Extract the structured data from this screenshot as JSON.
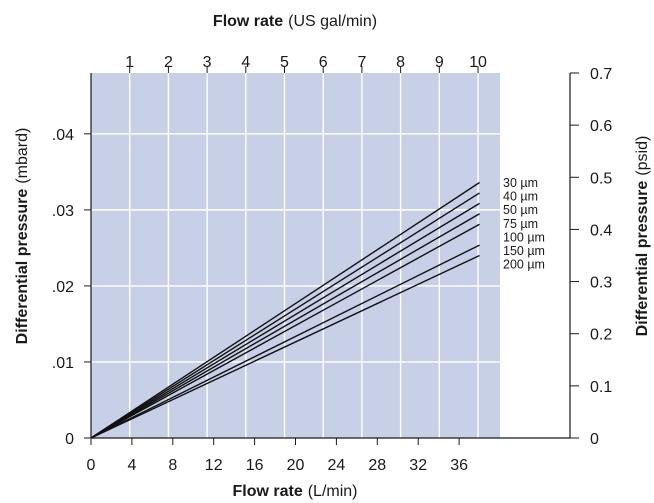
{
  "chart_data": {
    "type": "line",
    "colors": {
      "plot_background": "#c8d0e7",
      "grid": "#ffffff",
      "series": "#111111"
    },
    "grid": true,
    "x_bottom": {
      "label_bold": "Flow rate",
      "label_unit": "(L/min)",
      "range": [
        0,
        40
      ],
      "ticks": [
        0,
        4,
        8,
        12,
        16,
        20,
        24,
        28,
        32,
        36
      ]
    },
    "x_top": {
      "label_bold": "Flow rate",
      "label_unit": "(US gal/min)",
      "ticks": [
        1,
        2,
        3,
        4,
        5,
        6,
        7,
        8,
        9,
        10
      ],
      "liters_per_gallon": 3.785
    },
    "y_left": {
      "label_bold": "Differential pressure",
      "label_unit": "(mbard)",
      "range": [
        0,
        0.048
      ],
      "ticks": [
        {
          "value": 0,
          "label": "0"
        },
        {
          "value": 0.01,
          "label": ".01"
        },
        {
          "value": 0.02,
          "label": ".02"
        },
        {
          "value": 0.03,
          "label": ".03"
        },
        {
          "value": 0.04,
          "label": ".04"
        }
      ]
    },
    "y_right": {
      "label_bold": "Differential pressure",
      "label_unit": "(psid)",
      "range": [
        0,
        0.7
      ],
      "ticks": [
        {
          "value": 0,
          "label": "0"
        },
        {
          "value": 0.1,
          "label": "0.1"
        },
        {
          "value": 0.2,
          "label": "0.2"
        },
        {
          "value": 0.3,
          "label": "0.3"
        },
        {
          "value": 0.4,
          "label": "0.4"
        },
        {
          "value": 0.5,
          "label": "0.5"
        },
        {
          "value": 0.6,
          "label": "0.6"
        },
        {
          "value": 0.7,
          "label": "0.7"
        }
      ]
    },
    "series": [
      {
        "name": "30 µm",
        "x": [
          0,
          38
        ],
        "y": [
          0,
          0.49
        ]
      },
      {
        "name": "40 µm",
        "x": [
          0,
          38
        ],
        "y": [
          0,
          0.47
        ]
      },
      {
        "name": "50 µm",
        "x": [
          0,
          38
        ],
        "y": [
          0,
          0.45
        ]
      },
      {
        "name": "75 µm",
        "x": [
          0,
          38
        ],
        "y": [
          0,
          0.43
        ]
      },
      {
        "name": "100 µm",
        "x": [
          0,
          38
        ],
        "y": [
          0,
          0.41
        ]
      },
      {
        "name": "150 µm",
        "x": [
          0,
          38
        ],
        "y": [
          0,
          0.37
        ]
      },
      {
        "name": "200 µm",
        "x": [
          0,
          38
        ],
        "y": [
          0,
          0.35
        ]
      }
    ]
  }
}
